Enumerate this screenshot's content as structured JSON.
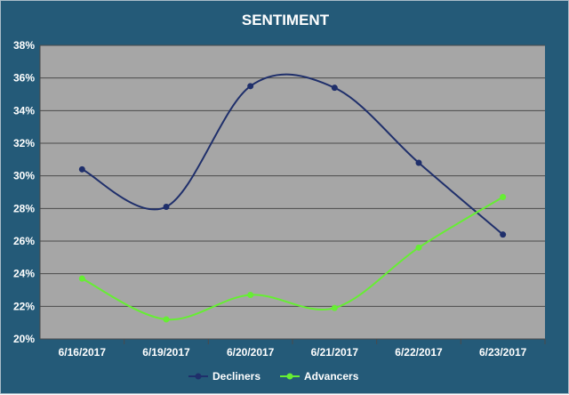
{
  "chart_data": {
    "type": "line",
    "title": "SENTIMENT",
    "xlabel": "",
    "ylabel": "",
    "categories": [
      "6/16/2017",
      "6/19/2017",
      "6/20/2017",
      "6/21/2017",
      "6/22/2017",
      "6/23/2017"
    ],
    "ylim": [
      20,
      38
    ],
    "yticks": [
      20,
      22,
      24,
      26,
      28,
      30,
      32,
      34,
      36,
      38
    ],
    "ytick_format": "%",
    "grid": "horizontal",
    "smooth": true,
    "legend": "bottom",
    "plot_background": "#a6a6a6",
    "background": "#245a78",
    "series": [
      {
        "name": "Decliners",
        "values": [
          30.4,
          28.1,
          35.5,
          35.4,
          30.8,
          26.4
        ],
        "color": "#1f2f6b"
      },
      {
        "name": "Advancers",
        "values": [
          23.7,
          21.2,
          22.7,
          21.9,
          25.6,
          28.7
        ],
        "color": "#66ee33"
      }
    ]
  }
}
